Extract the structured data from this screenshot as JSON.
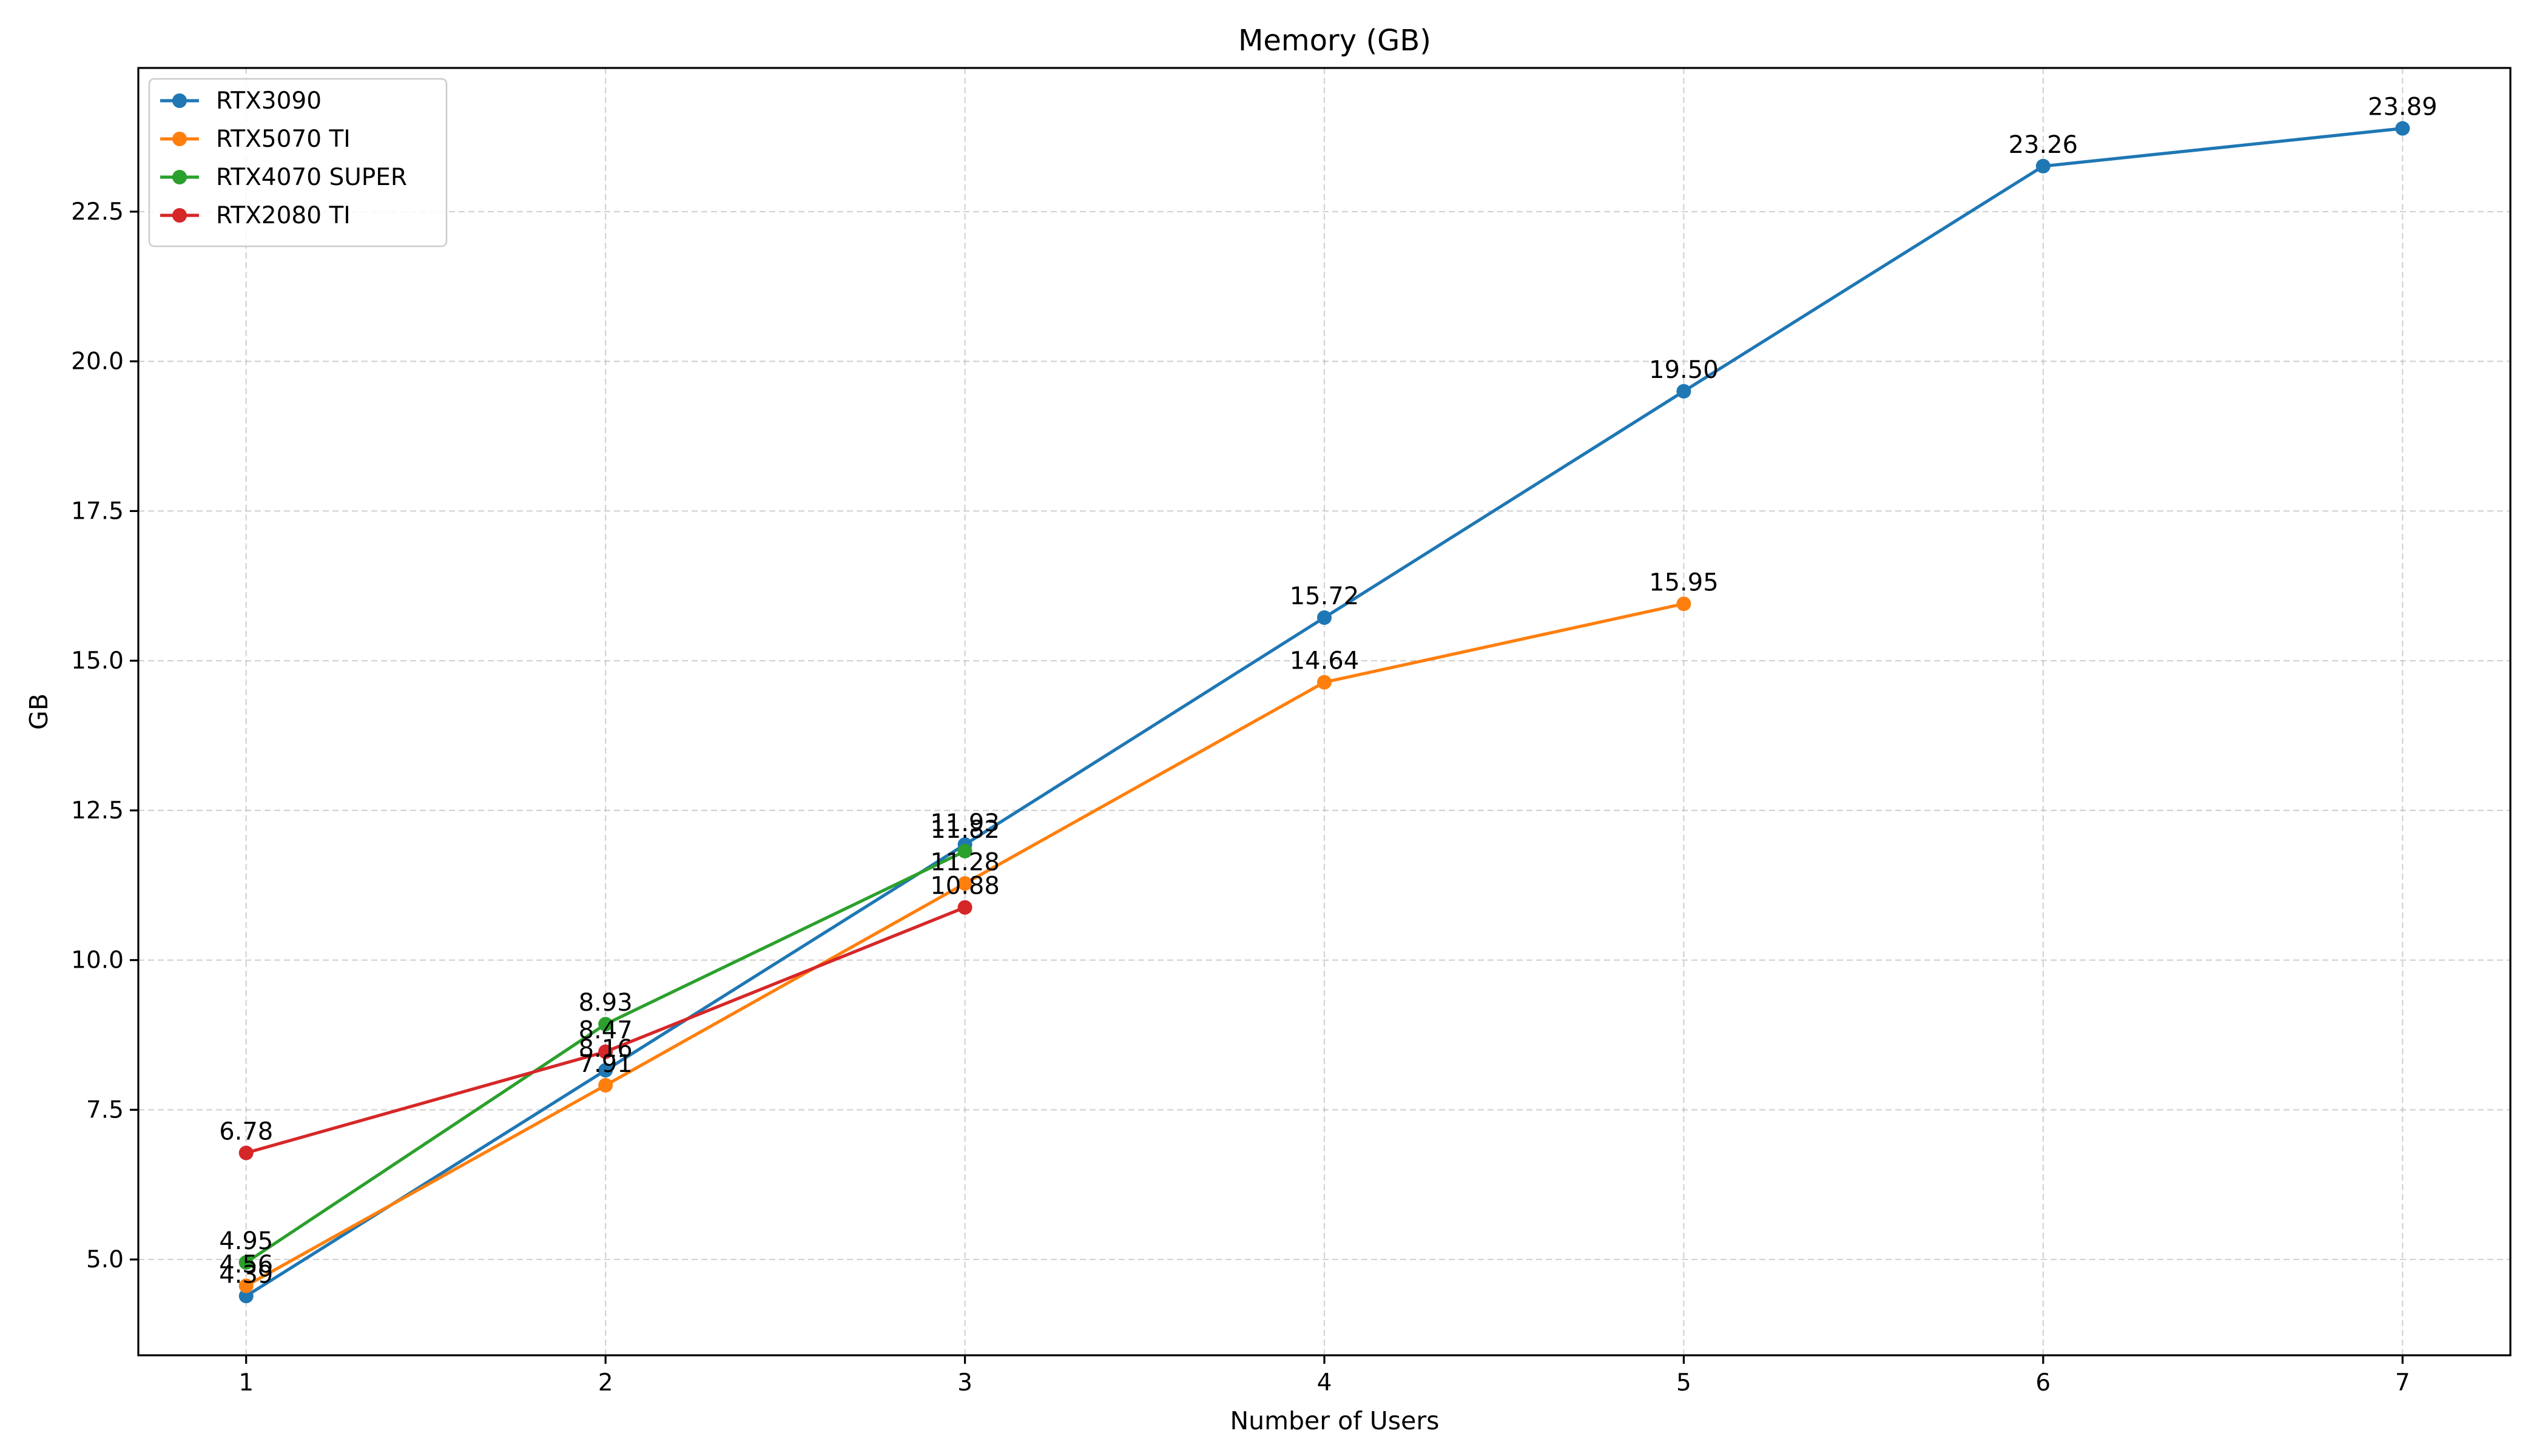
{
  "chart_data": {
    "type": "line",
    "title": "Memory (GB)",
    "xlabel": "Number of Users",
    "ylabel": "GB",
    "xlim": [
      0.7,
      7.3
    ],
    "ylim": [
      3.4,
      24.9
    ],
    "xticks": [
      1,
      2,
      3,
      4,
      5,
      6,
      7
    ],
    "xtick_labels": [
      "1",
      "2",
      "3",
      "4",
      "5",
      "6",
      "7"
    ],
    "yticks": [
      5.0,
      7.5,
      10.0,
      12.5,
      15.0,
      17.5,
      20.0,
      22.5
    ],
    "ytick_labels": [
      "5.0",
      "7.5",
      "10.0",
      "12.5",
      "15.0",
      "17.5",
      "20.0",
      "22.5"
    ],
    "grid": true,
    "legend_position": "top-left",
    "series": [
      {
        "name": "RTX3090",
        "color": "#1f77b4",
        "x": [
          1,
          2,
          3,
          4,
          5,
          6,
          7
        ],
        "y": [
          4.39,
          8.16,
          11.93,
          15.72,
          19.5,
          23.26,
          23.89
        ],
        "labels": [
          "4.39",
          "8.16",
          "11.93",
          "15.72",
          "19.50",
          "23.26",
          "23.89"
        ]
      },
      {
        "name": "RTX5070 TI",
        "color": "#ff7f0e",
        "x": [
          1,
          2,
          3,
          4,
          5
        ],
        "y": [
          4.56,
          7.91,
          11.28,
          14.64,
          15.95
        ],
        "labels": [
          "4.56",
          "7.91",
          "11.28",
          "14.64",
          "15.95"
        ]
      },
      {
        "name": "RTX4070 SUPER",
        "color": "#2ca02c",
        "x": [
          1,
          2,
          3
        ],
        "y": [
          4.95,
          8.93,
          11.82
        ],
        "labels": [
          "4.95",
          "8.93",
          "11.82"
        ]
      },
      {
        "name": "RTX2080 TI",
        "color": "#d62728",
        "x": [
          1,
          2,
          3
        ],
        "y": [
          6.78,
          8.47,
          10.88
        ],
        "labels": [
          "6.78",
          "8.47",
          "10.88"
        ]
      }
    ]
  }
}
